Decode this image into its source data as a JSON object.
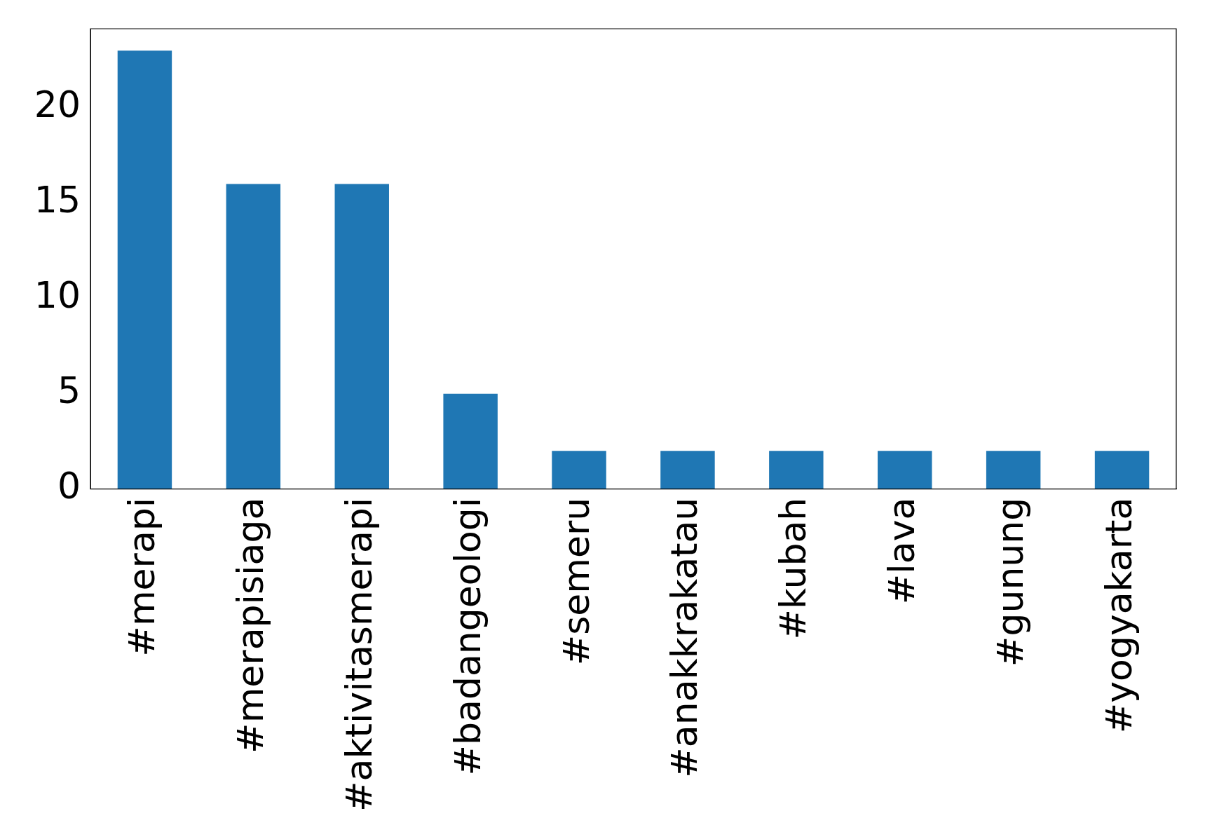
{
  "chart_data": {
    "type": "bar",
    "categories": [
      "#merapi",
      "#merapisiaga",
      "#aktivitasmerapi",
      "#badangeologi",
      "#semeru",
      "#anakkrakatau",
      "#kubah",
      "#lava",
      "#gunung",
      "#yogyakarta"
    ],
    "values": [
      23,
      16,
      16,
      5,
      2,
      2,
      2,
      2,
      2,
      2
    ],
    "color": "#1f77b4",
    "ylim": [
      0,
      24.15
    ],
    "yticks": [
      0,
      5,
      10,
      15,
      20
    ],
    "grid": false
  }
}
